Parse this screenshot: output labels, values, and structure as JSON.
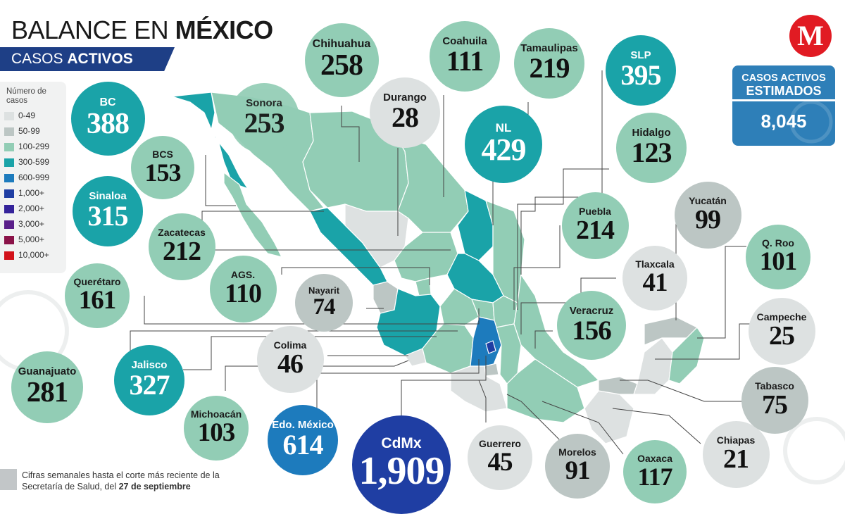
{
  "header": {
    "title_light": "BALANCE EN ",
    "title_bold": "MÉXICO",
    "subtitle_light": "CASOS ",
    "subtitle_bold": "ACTIVOS"
  },
  "legend": {
    "title": "Número de casos",
    "items": [
      {
        "label": "0-49",
        "color": "#dde1e1"
      },
      {
        "label": "50-99",
        "color": "#bcc6c4"
      },
      {
        "label": "100-299",
        "color": "#92cdb5"
      },
      {
        "label": "300-599",
        "color": "#1aa3a8"
      },
      {
        "label": "600-999",
        "color": "#1d7bbd"
      },
      {
        "label": "1,000+",
        "color": "#1f3ea3"
      },
      {
        "label": "2,000+",
        "color": "#34239a"
      },
      {
        "label": "3,000+",
        "color": "#5a1f8a"
      },
      {
        "label": "5,000+",
        "color": "#8a1248"
      },
      {
        "label": "10,000+",
        "color": "#d2121a"
      }
    ]
  },
  "states": [
    {
      "name": "BC",
      "value": "388",
      "color": "#1aa3a8"
    },
    {
      "name": "BCS",
      "value": "153",
      "color": "#92cdb5"
    },
    {
      "name": "Sinaloa",
      "value": "315",
      "color": "#1aa3a8"
    },
    {
      "name": "Zacatecas",
      "value": "212",
      "color": "#92cdb5"
    },
    {
      "name": "AGS.",
      "value": "110",
      "color": "#92cdb5"
    },
    {
      "name": "Querétaro",
      "value": "161",
      "color": "#92cdb5"
    },
    {
      "name": "Nayarit",
      "value": "74",
      "color": "#bcc6c4"
    },
    {
      "name": "Colima",
      "value": "46",
      "color": "#dde1e1"
    },
    {
      "name": "Guanajuato",
      "value": "281",
      "color": "#92cdb5"
    },
    {
      "name": "Jalisco",
      "value": "327",
      "color": "#1aa3a8"
    },
    {
      "name": "Michoacán",
      "value": "103",
      "color": "#92cdb5"
    },
    {
      "name": "Edo. México",
      "value": "614",
      "color": "#1d7bbd"
    },
    {
      "name": "CdMx",
      "value": "1,909",
      "color": "#1f3ea3"
    },
    {
      "name": "Guerrero",
      "value": "45",
      "color": "#dde1e1"
    },
    {
      "name": "Morelos",
      "value": "91",
      "color": "#bcc6c4"
    },
    {
      "name": "Oaxaca",
      "value": "117",
      "color": "#92cdb5"
    },
    {
      "name": "Chiapas",
      "value": "21",
      "color": "#dde1e1"
    },
    {
      "name": "Tabasco",
      "value": "75",
      "color": "#bcc6c4"
    },
    {
      "name": "Campeche",
      "value": "25",
      "color": "#dde1e1"
    },
    {
      "name": "Q. Roo",
      "value": "101",
      "color": "#92cdb5"
    },
    {
      "name": "Yucatán",
      "value": "99",
      "color": "#bcc6c4"
    },
    {
      "name": "Tlaxcala",
      "value": "41",
      "color": "#dde1e1"
    },
    {
      "name": "Veracruz",
      "value": "156",
      "color": "#92cdb5"
    },
    {
      "name": "Puebla",
      "value": "214",
      "color": "#92cdb5"
    },
    {
      "name": "Hidalgo",
      "value": "123",
      "color": "#92cdb5"
    },
    {
      "name": "SLP",
      "value": "395",
      "color": "#1aa3a8"
    },
    {
      "name": "NL",
      "value": "429",
      "color": "#1aa3a8"
    },
    {
      "name": "Tamaulipas",
      "value": "219",
      "color": "#92cdb5"
    },
    {
      "name": "Coahuila",
      "value": "111",
      "color": "#92cdb5"
    },
    {
      "name": "Durango",
      "value": "28",
      "color": "#dde1e1"
    },
    {
      "name": "Chihuahua",
      "value": "258",
      "color": "#92cdb5"
    },
    {
      "name": "Sonora",
      "value": "253",
      "color": "#92cdb5"
    }
  ],
  "logo": {
    "letter": "M",
    "color": "#e11b23"
  },
  "estimate": {
    "line1": "CASOS ACTIVOS",
    "line2": "ESTIMADOS",
    "value": "8,045"
  },
  "footnote": {
    "text": "Cifras semanales hasta el corte más reciente de la Secretaría de Salud, del ",
    "bold": "27 de septiembre"
  }
}
